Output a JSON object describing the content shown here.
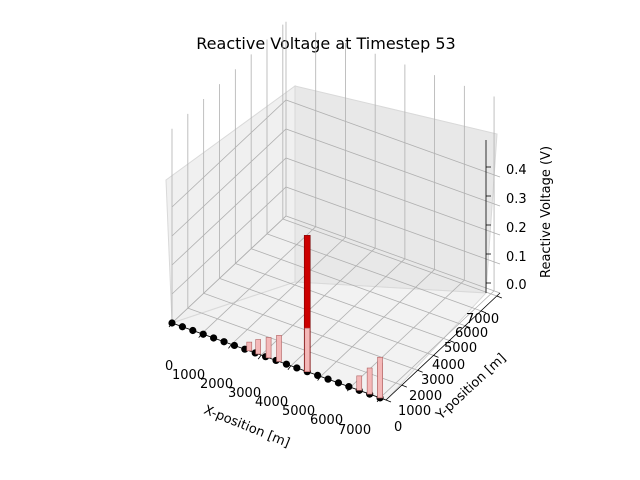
{
  "chart_data": {
    "type": "bar3d",
    "title": "Reactive Voltage at Timestep 53",
    "xlabel": "X-position [m]",
    "ylabel": "Y-position [m]",
    "zlabel": "Reactive Voltage (V)",
    "xticks": [
      "0",
      "1000",
      "2000",
      "3000",
      "4000",
      "5000",
      "6000",
      "7000"
    ],
    "yticks": [
      "0",
      "1000",
      "2000",
      "3000",
      "4000",
      "5000",
      "6000",
      "7000"
    ],
    "zticks": [
      "0.0",
      "0.1",
      "0.2",
      "0.3",
      "0.4"
    ],
    "xlim": [
      0,
      7200
    ],
    "ylim": [
      0,
      7200
    ],
    "zlim": [
      0,
      0.48
    ],
    "grid": true,
    "colors": {
      "bar_main": "#cc0000",
      "bar_light": "#f4b8b8",
      "node": "#000000"
    },
    "nodes": [
      {
        "x": 0,
        "y": 0
      },
      {
        "x": 350,
        "y": 0
      },
      {
        "x": 700,
        "y": 0
      },
      {
        "x": 1050,
        "y": 0
      },
      {
        "x": 1400,
        "y": 0
      },
      {
        "x": 1750,
        "y": 0
      },
      {
        "x": 2100,
        "y": 0
      },
      {
        "x": 2450,
        "y": 0
      },
      {
        "x": 2800,
        "y": 0
      },
      {
        "x": 3150,
        "y": 0
      },
      {
        "x": 3500,
        "y": 0
      },
      {
        "x": 3850,
        "y": 0
      },
      {
        "x": 4200,
        "y": 0
      },
      {
        "x": 4550,
        "y": 0
      },
      {
        "x": 4900,
        "y": 0
      },
      {
        "x": 5250,
        "y": 0
      },
      {
        "x": 5600,
        "y": 0
      },
      {
        "x": 5950,
        "y": 0
      },
      {
        "x": 6300,
        "y": 0
      },
      {
        "x": 6650,
        "y": 0
      },
      {
        "x": 7000,
        "y": 0
      }
    ],
    "bars": [
      {
        "x": 2600,
        "y": 0,
        "value": 0.03
      },
      {
        "x": 2900,
        "y": 0,
        "value": 0.05
      },
      {
        "x": 3250,
        "y": 0,
        "value": 0.07
      },
      {
        "x": 3600,
        "y": 0,
        "value": 0.09
      },
      {
        "x": 4550,
        "y": 0,
        "value": 0.47
      },
      {
        "x": 4550,
        "y": 0,
        "value": 0.15
      },
      {
        "x": 6300,
        "y": 0,
        "value": 0.05
      },
      {
        "x": 6650,
        "y": 0,
        "value": 0.09
      },
      {
        "x": 7000,
        "y": 0,
        "value": 0.12
      },
      {
        "x": 7000,
        "y": 0,
        "value": 0.14
      }
    ]
  }
}
